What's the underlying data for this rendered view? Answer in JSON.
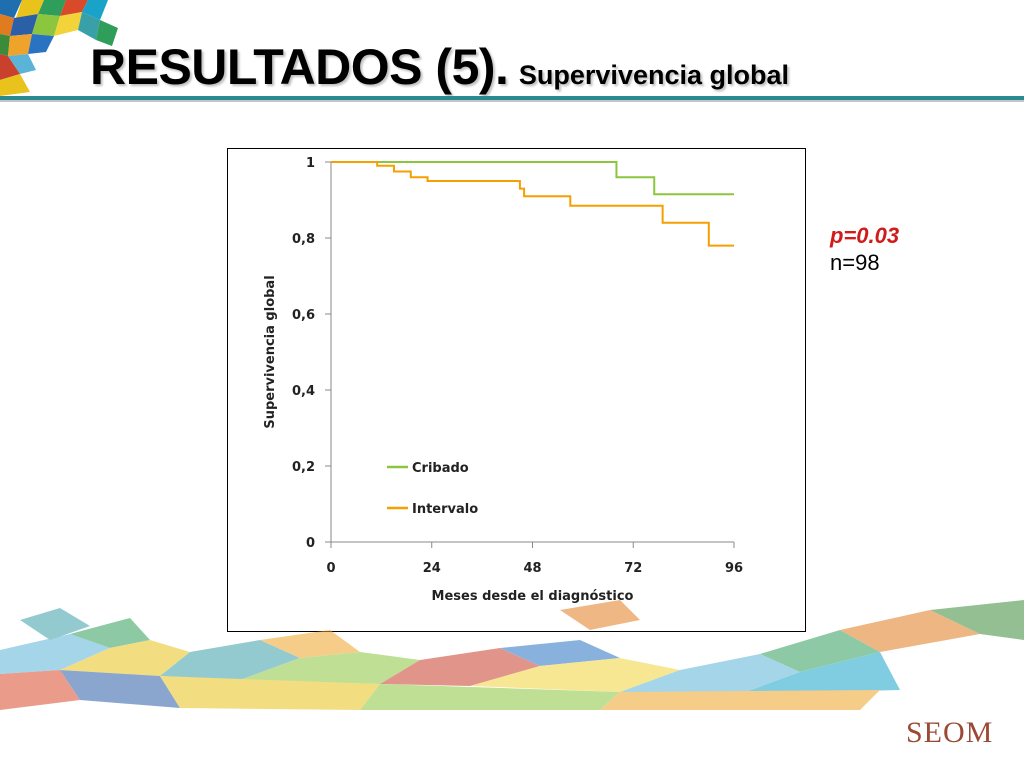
{
  "title": {
    "main": "RESULTADOS (5).",
    "sub": "Supervivencia global"
  },
  "stats": {
    "p_value": "p=0.03",
    "n": "n=98"
  },
  "branding": {
    "logo_text": "SEOM"
  },
  "colors": {
    "title_rule": "#2a8a8f",
    "p_value": "#d11a1a",
    "logo": "#9a4a34"
  },
  "chart_data": {
    "type": "line",
    "subtype": "kaplan-meier-step",
    "title": "",
    "xlabel": "Meses desde el diagnóstico",
    "ylabel": "Supervivencia global",
    "xlim": [
      0,
      96
    ],
    "ylim": [
      0,
      1
    ],
    "x_ticks": [
      "0",
      "24",
      "48",
      "72",
      "96"
    ],
    "y_ticks": [
      "0",
      "0,2",
      "0,4",
      "0,6",
      "0,8",
      "1"
    ],
    "grid": false,
    "legend_position": "bottom-left inside plot",
    "series": [
      {
        "name": "Cribado",
        "color": "#8cc63f",
        "x": [
          0,
          68,
          77,
          96
        ],
        "y": [
          1.0,
          0.96,
          0.915,
          0.915
        ]
      },
      {
        "name": "Intervalo",
        "color": "#f5a000",
        "x": [
          0,
          11,
          15,
          19,
          23,
          45,
          46,
          57,
          79,
          90,
          96
        ],
        "y": [
          1.0,
          0.99,
          0.975,
          0.96,
          0.95,
          0.93,
          0.91,
          0.885,
          0.84,
          0.78,
          0.78
        ]
      }
    ]
  }
}
